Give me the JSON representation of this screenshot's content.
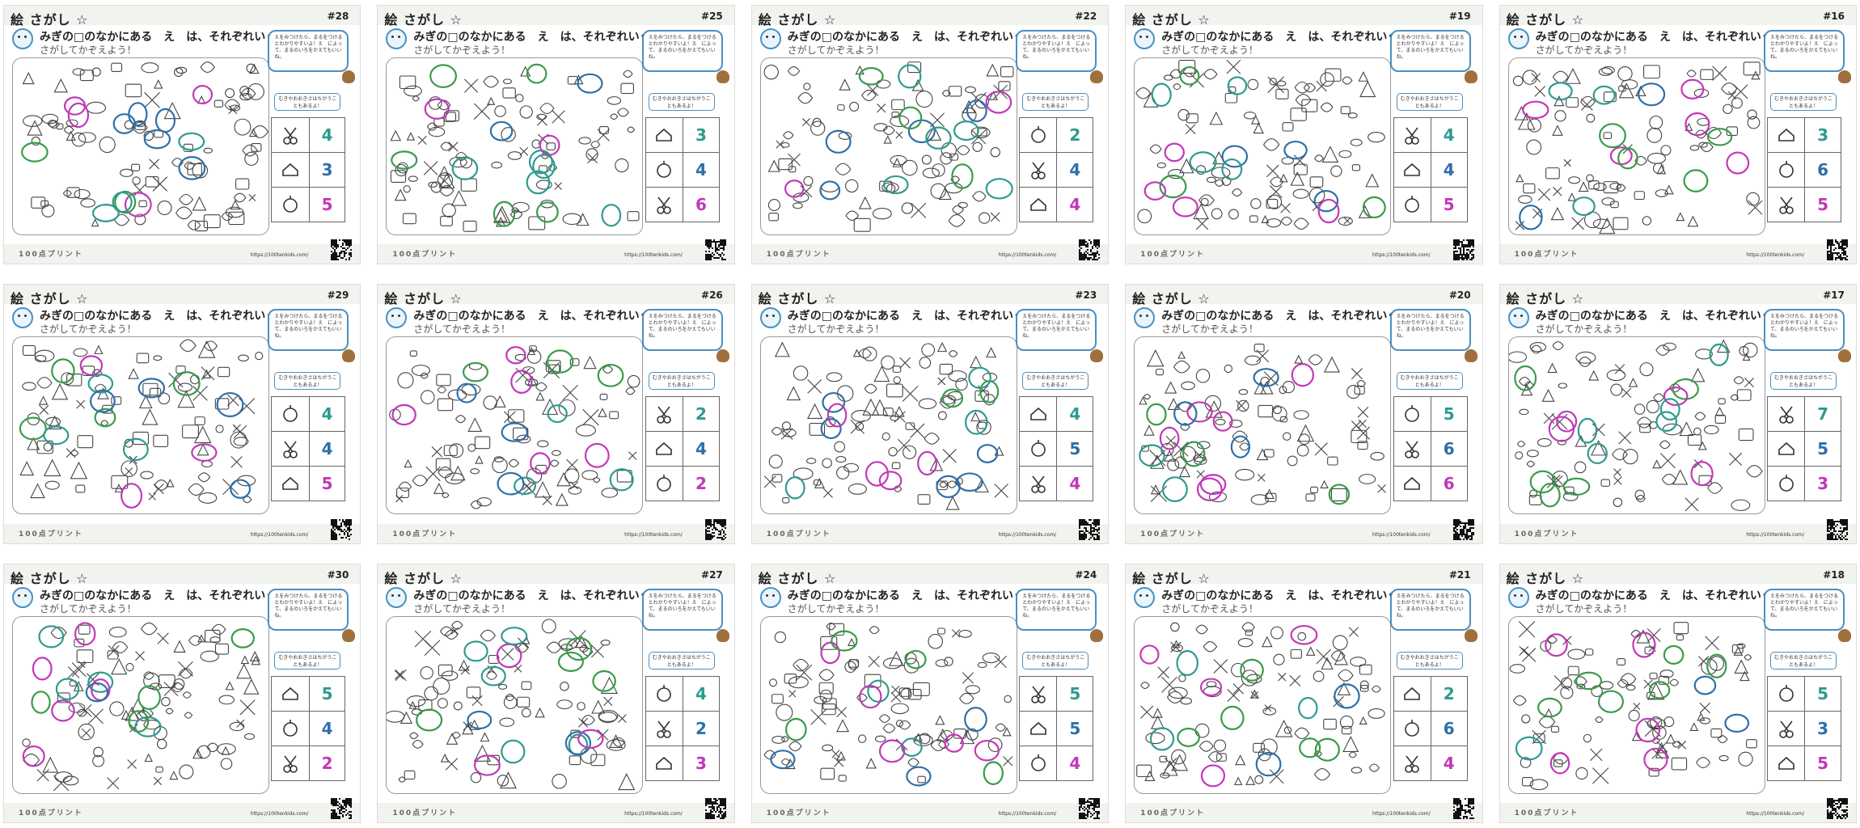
{
  "palette": {
    "teal": "#2e9b8f",
    "blue": "#2f6fa8",
    "magenta": "#c238b8",
    "green": "#3a9b4a",
    "speech_border": "#4a90c2"
  },
  "sheet_template": {
    "title": "絵 さがし ☆",
    "question": "みぎの□のなかにある　え　は、それぞれいくつあるかな？",
    "subtitle": "さがしてかぞえよう！",
    "bubble": "えをみつけたら、まるをつけるとわかりやすいよ！え　によって、まるのいろをかえてもいいね。",
    "hint": "むきやおおきさはちがうこともあるよ！",
    "brand": "100点プリント",
    "url": "https://100tenkids.com/"
  },
  "sheets": [
    {
      "number": "#28",
      "answers": [
        {
          "icon": "scissors-icon",
          "count": "4",
          "color": "#2e9b8f"
        },
        {
          "icon": "high-heel-icon",
          "count": "3",
          "color": "#2f6fa8"
        },
        {
          "icon": "pumpkin-icon",
          "count": "5",
          "color": "#c238b8"
        }
      ]
    },
    {
      "number": "#25",
      "answers": [
        {
          "icon": "envelope-icon",
          "count": "3",
          "color": "#2e9b8f"
        },
        {
          "icon": "pliers-icon",
          "count": "4",
          "color": "#2f6fa8"
        },
        {
          "icon": "bug-icon",
          "count": "6",
          "color": "#c238b8"
        }
      ]
    },
    {
      "number": "#22",
      "answers": [
        {
          "icon": "bowl-icon",
          "count": "2",
          "color": "#2e9b8f"
        },
        {
          "icon": "paintbrush-icon",
          "count": "4",
          "color": "#2f6fa8"
        },
        {
          "icon": "glove-icon",
          "count": "4",
          "color": "#c238b8"
        }
      ]
    },
    {
      "number": "#19",
      "answers": [
        {
          "icon": "dumpling-icon",
          "count": "4",
          "color": "#2e9b8f"
        },
        {
          "icon": "gingerbread-icon",
          "count": "4",
          "color": "#2f6fa8"
        },
        {
          "icon": "jar-icon",
          "count": "5",
          "color": "#c238b8"
        }
      ]
    },
    {
      "number": "#16",
      "answers": [
        {
          "icon": "dog-icon",
          "count": "3",
          "color": "#2e9b8f"
        },
        {
          "icon": "apple-core-icon",
          "count": "6",
          "color": "#2f6fa8"
        },
        {
          "icon": "atom-icon",
          "count": "5",
          "color": "#c238b8"
        }
      ]
    },
    {
      "number": "#29",
      "answers": [
        {
          "icon": "anchor-icon",
          "count": "4",
          "color": "#2e9b8f"
        },
        {
          "icon": "bucket-icon",
          "count": "4",
          "color": "#2f6fa8"
        },
        {
          "icon": "wrench-icon",
          "count": "5",
          "color": "#c238b8"
        }
      ]
    },
    {
      "number": "#26",
      "answers": [
        {
          "icon": "lollipop-icon",
          "count": "2",
          "color": "#2e9b8f"
        },
        {
          "icon": "whale-icon",
          "count": "4",
          "color": "#2f6fa8"
        },
        {
          "icon": "bell-icon",
          "count": "2",
          "color": "#c238b8"
        }
      ]
    },
    {
      "number": "#23",
      "answers": [
        {
          "icon": "pen-icon",
          "count": "4",
          "color": "#2e9b8f"
        },
        {
          "icon": "marker-icon",
          "count": "5",
          "color": "#2f6fa8"
        },
        {
          "icon": "vase-icon",
          "count": "4",
          "color": "#c238b8"
        }
      ]
    },
    {
      "number": "#20",
      "answers": [
        {
          "icon": "tent-icon",
          "count": "5",
          "color": "#2e9b8f"
        },
        {
          "icon": "shovel-icon",
          "count": "6",
          "color": "#2f6fa8"
        },
        {
          "icon": "ball-icon",
          "count": "6",
          "color": "#c238b8"
        }
      ]
    },
    {
      "number": "#17",
      "answers": [
        {
          "icon": "cloud-icon",
          "count": "7",
          "color": "#2e9b8f"
        },
        {
          "icon": "sprout-icon",
          "count": "5",
          "color": "#2f6fa8"
        },
        {
          "icon": "drum-icon",
          "count": "3",
          "color": "#c238b8"
        }
      ]
    },
    {
      "number": "#30",
      "answers": [
        {
          "icon": "mushroom-icon",
          "count": "5",
          "color": "#2e9b8f"
        },
        {
          "icon": "robot-icon",
          "count": "4",
          "color": "#2f6fa8"
        },
        {
          "icon": "toothbrush-icon",
          "count": "2",
          "color": "#c238b8"
        }
      ]
    },
    {
      "number": "#27",
      "answers": [
        {
          "icon": "key-icon",
          "count": "4",
          "color": "#2e9b8f"
        },
        {
          "icon": "bow-icon",
          "count": "2",
          "color": "#2f6fa8"
        },
        {
          "icon": "ruler-icon",
          "count": "3",
          "color": "#c238b8"
        }
      ]
    },
    {
      "number": "#24",
      "answers": [
        {
          "icon": "fish-icon",
          "count": "5",
          "color": "#2e9b8f"
        },
        {
          "icon": "overalls-icon",
          "count": "5",
          "color": "#2f6fa8"
        },
        {
          "icon": "kettlebell-icon",
          "count": "4",
          "color": "#c238b8"
        }
      ]
    },
    {
      "number": "#21",
      "answers": [
        {
          "icon": "pot-icon",
          "count": "2",
          "color": "#2e9b8f"
        },
        {
          "icon": "bottle-icon",
          "count": "6",
          "color": "#2f6fa8"
        },
        {
          "icon": "headphones-icon",
          "count": "4",
          "color": "#c238b8"
        }
      ]
    },
    {
      "number": "#18",
      "answers": [
        {
          "icon": "fishbone-icon",
          "count": "5",
          "color": "#2e9b8f"
        },
        {
          "icon": "cake-icon",
          "count": "3",
          "color": "#2f6fa8"
        },
        {
          "icon": "candy-icon",
          "count": "5",
          "color": "#c238b8"
        }
      ]
    }
  ]
}
